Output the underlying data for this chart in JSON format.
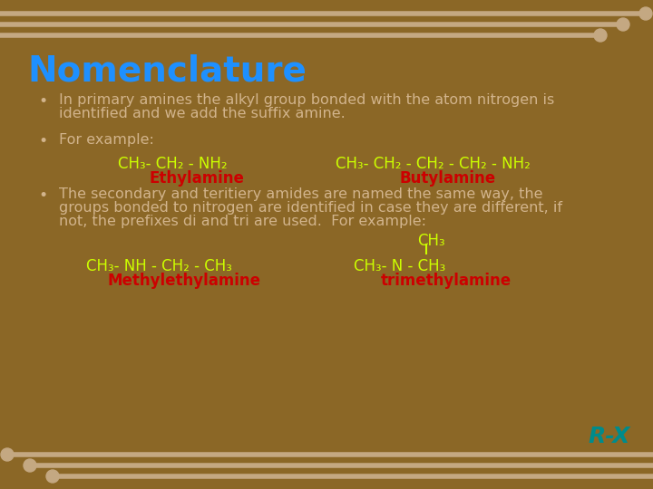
{
  "bg_color": "#8B6726",
  "title": "Nomenclature",
  "title_color": "#1E90FF",
  "title_fontsize": 28,
  "bullet_color": "#D2B48C",
  "bullet_fontsize": 11.5,
  "formula_color": "#CCFF00",
  "label_color": "#CC0000",
  "stripe_color": "#C4A882",
  "circle_color": "#C4A882",
  "bullet1_line1": "In primary amines the alkyl group bonded with the atom nitrogen is",
  "bullet1_line2": "identified and we add the suffix amine.",
  "bullet2": "For example:",
  "bullet3_line1": "The secondary and teritiery amides are named the same way, the",
  "bullet3_line2": "groups bonded to nitrogen are identified in case they are different, if",
  "bullet3_line3": "not, the prefixes di and tri are used.  For example:",
  "ethylamine_formula": "CH₃- CH₂ - NH₂",
  "ethylamine_label": "Ethylamine",
  "butylamine_formula": "CH₃- CH₂ - CH₂ - CH₂ - NH₂",
  "butylamine_label": "Butylamine",
  "methylethylamine_formula": "CH₃- NH - CH₂ - CH₃",
  "methylethylamine_label": "Methylethylamine",
  "trimethylamine_top": "CH₃",
  "trimethylamine_formula": "CH₃- N - CH₃",
  "trimethylamine_label": "trimethylamine",
  "watermark_text": "R-X",
  "watermark_color": "#008B8B"
}
